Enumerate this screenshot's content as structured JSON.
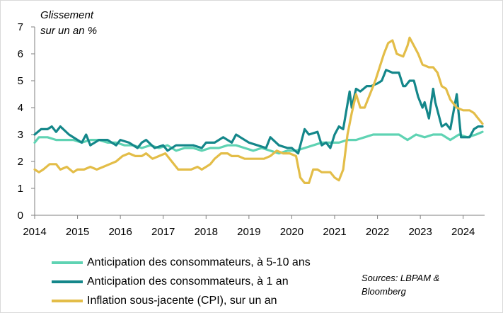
{
  "chart_data": {
    "type": "line",
    "title": "",
    "ylabel": [
      "Glissement",
      "sur un an %"
    ],
    "xlabel": "",
    "ylim": [
      0,
      7
    ],
    "xlim": [
      2014,
      2024.5
    ],
    "yticks": [
      "0",
      "1",
      "2",
      "3",
      "4",
      "5",
      "6",
      "7"
    ],
    "xticks": [
      "2014",
      "2015",
      "2016",
      "2017",
      "2018",
      "2019",
      "2020",
      "2021",
      "2022",
      "2023",
      "2024"
    ],
    "grid": false,
    "source": [
      "Sources: LBPAM &",
      "Bloomberg"
    ],
    "series": [
      {
        "name": "Anticipation des consommateurs, à 5-10 ans",
        "color": "#5fd3b3",
        "points": [
          [
            2014.0,
            2.7
          ],
          [
            2014.1,
            2.9
          ],
          [
            2014.3,
            2.9
          ],
          [
            2014.5,
            2.8
          ],
          [
            2014.7,
            2.8
          ],
          [
            2014.9,
            2.8
          ],
          [
            2015.1,
            2.7
          ],
          [
            2015.3,
            2.8
          ],
          [
            2015.5,
            2.8
          ],
          [
            2015.7,
            2.7
          ],
          [
            2015.9,
            2.7
          ],
          [
            2016.1,
            2.6
          ],
          [
            2016.3,
            2.6
          ],
          [
            2016.5,
            2.5
          ],
          [
            2016.7,
            2.6
          ],
          [
            2016.9,
            2.5
          ],
          [
            2017.1,
            2.6
          ],
          [
            2017.3,
            2.4
          ],
          [
            2017.5,
            2.5
          ],
          [
            2017.7,
            2.5
          ],
          [
            2017.9,
            2.4
          ],
          [
            2018.1,
            2.5
          ],
          [
            2018.3,
            2.5
          ],
          [
            2018.5,
            2.6
          ],
          [
            2018.7,
            2.6
          ],
          [
            2018.9,
            2.5
          ],
          [
            2019.1,
            2.4
          ],
          [
            2019.3,
            2.5
          ],
          [
            2019.5,
            2.4
          ],
          [
            2019.7,
            2.3
          ],
          [
            2019.9,
            2.4
          ],
          [
            2020.1,
            2.4
          ],
          [
            2020.3,
            2.5
          ],
          [
            2020.5,
            2.6
          ],
          [
            2020.7,
            2.7
          ],
          [
            2020.9,
            2.7
          ],
          [
            2021.1,
            2.7
          ],
          [
            2021.3,
            2.8
          ],
          [
            2021.5,
            2.8
          ],
          [
            2021.7,
            2.9
          ],
          [
            2021.9,
            3.0
          ],
          [
            2022.1,
            3.0
          ],
          [
            2022.3,
            3.0
          ],
          [
            2022.5,
            3.0
          ],
          [
            2022.7,
            2.8
          ],
          [
            2022.9,
            3.0
          ],
          [
            2023.1,
            2.9
          ],
          [
            2023.3,
            3.0
          ],
          [
            2023.5,
            3.0
          ],
          [
            2023.7,
            2.8
          ],
          [
            2023.9,
            3.0
          ],
          [
            2024.1,
            2.9
          ],
          [
            2024.3,
            3.0
          ],
          [
            2024.45,
            3.1
          ]
        ]
      },
      {
        "name": "Anticipation des consommateurs, à 1 an",
        "color": "#14878a",
        "points": [
          [
            2014.0,
            3.0
          ],
          [
            2014.15,
            3.2
          ],
          [
            2014.3,
            3.2
          ],
          [
            2014.4,
            3.3
          ],
          [
            2014.5,
            3.1
          ],
          [
            2014.6,
            3.3
          ],
          [
            2014.8,
            3.0
          ],
          [
            2015.0,
            2.8
          ],
          [
            2015.1,
            2.7
          ],
          [
            2015.2,
            3.0
          ],
          [
            2015.3,
            2.6
          ],
          [
            2015.5,
            2.8
          ],
          [
            2015.7,
            2.8
          ],
          [
            2015.9,
            2.6
          ],
          [
            2016.0,
            2.8
          ],
          [
            2016.2,
            2.7
          ],
          [
            2016.4,
            2.5
          ],
          [
            2016.5,
            2.7
          ],
          [
            2016.6,
            2.8
          ],
          [
            2016.8,
            2.5
          ],
          [
            2017.0,
            2.6
          ],
          [
            2017.1,
            2.4
          ],
          [
            2017.3,
            2.6
          ],
          [
            2017.5,
            2.6
          ],
          [
            2017.7,
            2.6
          ],
          [
            2017.9,
            2.5
          ],
          [
            2018.0,
            2.7
          ],
          [
            2018.2,
            2.7
          ],
          [
            2018.4,
            2.9
          ],
          [
            2018.6,
            2.7
          ],
          [
            2018.7,
            3.0
          ],
          [
            2018.8,
            2.9
          ],
          [
            2019.0,
            2.7
          ],
          [
            2019.2,
            2.6
          ],
          [
            2019.4,
            2.5
          ],
          [
            2019.5,
            2.9
          ],
          [
            2019.7,
            2.6
          ],
          [
            2019.9,
            2.5
          ],
          [
            2020.0,
            2.5
          ],
          [
            2020.15,
            2.3
          ],
          [
            2020.3,
            3.2
          ],
          [
            2020.4,
            3.0
          ],
          [
            2020.6,
            3.1
          ],
          [
            2020.7,
            2.6
          ],
          [
            2020.8,
            2.7
          ],
          [
            2020.9,
            2.5
          ],
          [
            2021.0,
            3.0
          ],
          [
            2021.1,
            3.3
          ],
          [
            2021.2,
            3.2
          ],
          [
            2021.35,
            4.6
          ],
          [
            2021.4,
            4.0
          ],
          [
            2021.5,
            4.7
          ],
          [
            2021.6,
            4.6
          ],
          [
            2021.75,
            4.8
          ],
          [
            2021.85,
            4.8
          ],
          [
            2022.0,
            4.9
          ],
          [
            2022.1,
            5.0
          ],
          [
            2022.2,
            5.4
          ],
          [
            2022.35,
            5.3
          ],
          [
            2022.5,
            5.3
          ],
          [
            2022.6,
            4.8
          ],
          [
            2022.65,
            4.8
          ],
          [
            2022.75,
            5.0
          ],
          [
            2022.85,
            5.0
          ],
          [
            2022.95,
            4.4
          ],
          [
            2023.05,
            4.0
          ],
          [
            2023.1,
            4.2
          ],
          [
            2023.2,
            3.6
          ],
          [
            2023.3,
            4.7
          ],
          [
            2023.35,
            4.2
          ],
          [
            2023.5,
            3.3
          ],
          [
            2023.6,
            3.4
          ],
          [
            2023.7,
            3.2
          ],
          [
            2023.85,
            4.5
          ],
          [
            2023.95,
            2.9
          ],
          [
            2024.05,
            2.9
          ],
          [
            2024.15,
            2.9
          ],
          [
            2024.25,
            3.2
          ],
          [
            2024.35,
            3.3
          ],
          [
            2024.45,
            3.3
          ]
        ]
      },
      {
        "name": "Inflation sous-jacente (CPI), sur un an",
        "color": "#e3bd48",
        "points": [
          [
            2014.0,
            1.7
          ],
          [
            2014.1,
            1.6
          ],
          [
            2014.2,
            1.7
          ],
          [
            2014.35,
            1.9
          ],
          [
            2014.5,
            1.9
          ],
          [
            2014.6,
            1.7
          ],
          [
            2014.75,
            1.8
          ],
          [
            2014.9,
            1.6
          ],
          [
            2015.0,
            1.7
          ],
          [
            2015.15,
            1.7
          ],
          [
            2015.3,
            1.8
          ],
          [
            2015.45,
            1.7
          ],
          [
            2015.6,
            1.8
          ],
          [
            2015.75,
            1.9
          ],
          [
            2015.9,
            2.0
          ],
          [
            2016.05,
            2.2
          ],
          [
            2016.2,
            2.3
          ],
          [
            2016.35,
            2.2
          ],
          [
            2016.5,
            2.2
          ],
          [
            2016.6,
            2.3
          ],
          [
            2016.75,
            2.1
          ],
          [
            2016.9,
            2.2
          ],
          [
            2017.05,
            2.3
          ],
          [
            2017.2,
            2.0
          ],
          [
            2017.35,
            1.7
          ],
          [
            2017.5,
            1.7
          ],
          [
            2017.65,
            1.7
          ],
          [
            2017.8,
            1.8
          ],
          [
            2017.9,
            1.7
          ],
          [
            2018.0,
            1.8
          ],
          [
            2018.1,
            1.9
          ],
          [
            2018.2,
            2.1
          ],
          [
            2018.35,
            2.3
          ],
          [
            2018.5,
            2.3
          ],
          [
            2018.6,
            2.2
          ],
          [
            2018.75,
            2.2
          ],
          [
            2018.9,
            2.1
          ],
          [
            2019.05,
            2.1
          ],
          [
            2019.2,
            2.1
          ],
          [
            2019.35,
            2.1
          ],
          [
            2019.5,
            2.2
          ],
          [
            2019.65,
            2.4
          ],
          [
            2019.8,
            2.3
          ],
          [
            2019.95,
            2.3
          ],
          [
            2020.1,
            2.2
          ],
          [
            2020.2,
            1.4
          ],
          [
            2020.3,
            1.2
          ],
          [
            2020.4,
            1.2
          ],
          [
            2020.5,
            1.7
          ],
          [
            2020.6,
            1.7
          ],
          [
            2020.7,
            1.6
          ],
          [
            2020.8,
            1.6
          ],
          [
            2020.9,
            1.6
          ],
          [
            2021.0,
            1.4
          ],
          [
            2021.1,
            1.3
          ],
          [
            2021.2,
            1.7
          ],
          [
            2021.3,
            3.0
          ],
          [
            2021.4,
            3.8
          ],
          [
            2021.5,
            4.5
          ],
          [
            2021.6,
            4.0
          ],
          [
            2021.7,
            4.0
          ],
          [
            2021.85,
            4.6
          ],
          [
            2021.95,
            5.0
          ],
          [
            2022.05,
            5.5
          ],
          [
            2022.15,
            6.0
          ],
          [
            2022.25,
            6.4
          ],
          [
            2022.35,
            6.5
          ],
          [
            2022.45,
            6.0
          ],
          [
            2022.6,
            5.9
          ],
          [
            2022.7,
            6.3
          ],
          [
            2022.75,
            6.6
          ],
          [
            2022.85,
            6.3
          ],
          [
            2022.95,
            6.0
          ],
          [
            2023.05,
            5.6
          ],
          [
            2023.2,
            5.5
          ],
          [
            2023.3,
            5.5
          ],
          [
            2023.4,
            5.3
          ],
          [
            2023.5,
            4.8
          ],
          [
            2023.6,
            4.7
          ],
          [
            2023.7,
            4.3
          ],
          [
            2023.85,
            4.0
          ],
          [
            2024.0,
            3.9
          ],
          [
            2024.15,
            3.9
          ],
          [
            2024.25,
            3.8
          ],
          [
            2024.35,
            3.6
          ],
          [
            2024.45,
            3.4
          ]
        ]
      }
    ]
  }
}
